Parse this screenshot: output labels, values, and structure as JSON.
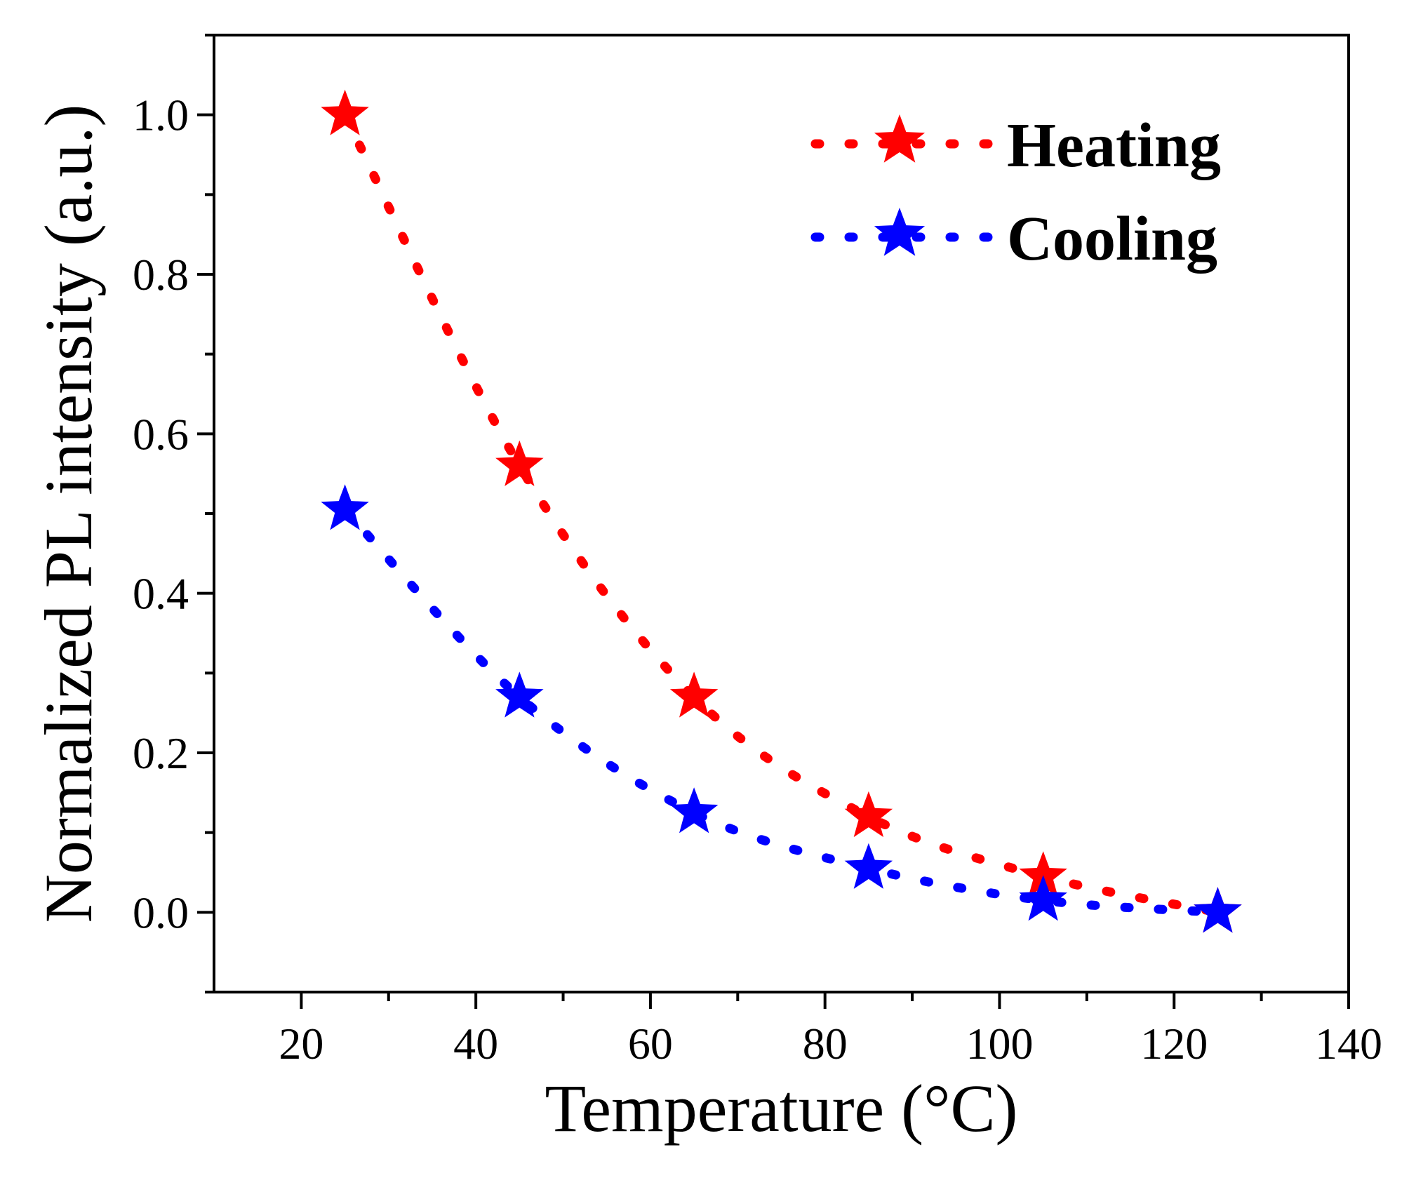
{
  "chart_data": {
    "type": "scatter",
    "title": "",
    "xlabel": "Temperature (°C)",
    "ylabel": "Normalized PL intensity (a.u.)",
    "xlim": [
      10,
      140
    ],
    "ylim": [
      -0.1,
      1.1
    ],
    "xticks": [
      20,
      40,
      60,
      80,
      100,
      120,
      140
    ],
    "xtick_labels": [
      "20",
      "40",
      "60",
      "80",
      "100",
      "120",
      "140"
    ],
    "yticks": [
      0.0,
      0.2,
      0.4,
      0.6,
      0.8,
      1.0
    ],
    "ytick_labels": [
      "0.0",
      "0.2",
      "0.4",
      "0.6",
      "0.8",
      "1.0"
    ],
    "grid": false,
    "legend_position": "top-right",
    "series": [
      {
        "name": "Heating",
        "color": "#ff0000",
        "marker": "star",
        "line_style": "dotted",
        "x": [
          25,
          45,
          65,
          85,
          105,
          125
        ],
        "y": [
          1.0,
          0.56,
          0.27,
          0.12,
          0.045,
          0.0
        ]
      },
      {
        "name": "Cooling",
        "color": "#0000ff",
        "marker": "star",
        "line_style": "dotted",
        "x": [
          25,
          45,
          65,
          85,
          105,
          125
        ],
        "y": [
          0.505,
          0.27,
          0.125,
          0.055,
          0.015,
          0.0
        ]
      }
    ]
  }
}
